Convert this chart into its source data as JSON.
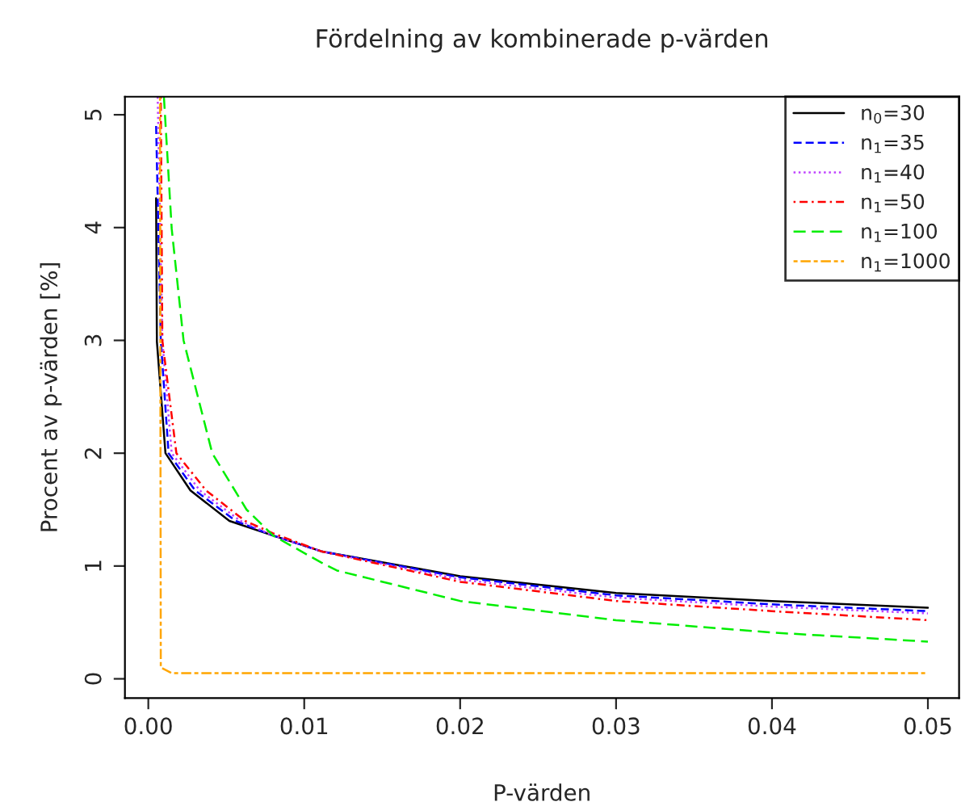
{
  "chart_data": {
    "type": "line",
    "title": "Fördelning av kombinerade p-värden",
    "xlabel": "P-värden",
    "ylabel": "Procent av p-värden [%]",
    "xlim": [
      -0.0015,
      0.052
    ],
    "ylim": [
      -0.17,
      5.16
    ],
    "xticks": [
      {
        "value": 0,
        "label": "0.00"
      },
      {
        "value": 0.01,
        "label": "0.01"
      },
      {
        "value": 0.02,
        "label": "0.02"
      },
      {
        "value": 0.03,
        "label": "0.03"
      },
      {
        "value": 0.04,
        "label": "0.04"
      },
      {
        "value": 0.05,
        "label": "0.05"
      }
    ],
    "yticks": [
      0,
      1,
      2,
      3,
      4,
      5
    ],
    "grid": false,
    "legend": "top right",
    "series": [
      {
        "name": "n$_{0}$=30",
        "color": "#000000",
        "line_style": "solid",
        "x": [
          0.0005,
          0.00055,
          0.0011,
          0.0027,
          0.0052,
          0.008,
          0.0111,
          0.02,
          0.03,
          0.04,
          0.05
        ],
        "values": [
          4.26,
          2.99,
          2.0,
          1.67,
          1.4,
          1.27,
          1.13,
          0.91,
          0.76,
          0.69,
          0.63
        ]
      },
      {
        "name": "n$_{1}$=35",
        "color": "#0000ff",
        "line_style": "dashed",
        "x": [
          0.0005,
          0.0008,
          0.0013,
          0.003,
          0.0056,
          0.008,
          0.0111,
          0.02,
          0.03,
          0.04,
          0.05
        ],
        "values": [
          4.9,
          3.0,
          2.0,
          1.67,
          1.4,
          1.27,
          1.13,
          0.9,
          0.74,
          0.66,
          0.6
        ]
      },
      {
        "name": "n$_{1}$=40",
        "color": "#bf40ff",
        "line_style": "dotted",
        "x": [
          0.0006,
          0.0009,
          0.0015,
          0.0033,
          0.0059,
          0.008,
          0.0111,
          0.02,
          0.03,
          0.04,
          0.05
        ],
        "values": [
          5.16,
          3.0,
          2.0,
          1.67,
          1.4,
          1.27,
          1.13,
          0.88,
          0.72,
          0.64,
          0.58
        ]
      },
      {
        "name": "n$_{1}$=50",
        "color": "#ff0000",
        "line_style": "dashdot",
        "x": [
          0.0008,
          0.0009,
          0.0018,
          0.0037,
          0.0062,
          0.008,
          0.0111,
          0.02,
          0.03,
          0.04,
          0.05
        ],
        "values": [
          5.16,
          3.0,
          2.0,
          1.67,
          1.4,
          1.29,
          1.13,
          0.86,
          0.69,
          0.6,
          0.52
        ]
      },
      {
        "name": "n$_{1}$=100",
        "color": "#00ee00",
        "line_style": "longdash",
        "x": [
          0.001,
          0.0015,
          0.00226,
          0.0041,
          0.0063,
          0.008,
          0.0111,
          0.0121,
          0.02,
          0.03,
          0.04,
          0.05
        ],
        "values": [
          5.16,
          3.99,
          3.0,
          2.0,
          1.5,
          1.27,
          1.03,
          0.96,
          0.69,
          0.52,
          0.41,
          0.33
        ]
      },
      {
        "name": "n$_{1}$=1000",
        "color": "#ffa500",
        "line_style": "twodash",
        "x": [
          0.00075,
          0.0008,
          0.0015,
          0.01,
          0.02,
          0.03,
          0.04,
          0.05
        ],
        "values": [
          5.16,
          0.1,
          0.05,
          0.05,
          0.05,
          0.05,
          0.05,
          0.05
        ]
      }
    ]
  }
}
